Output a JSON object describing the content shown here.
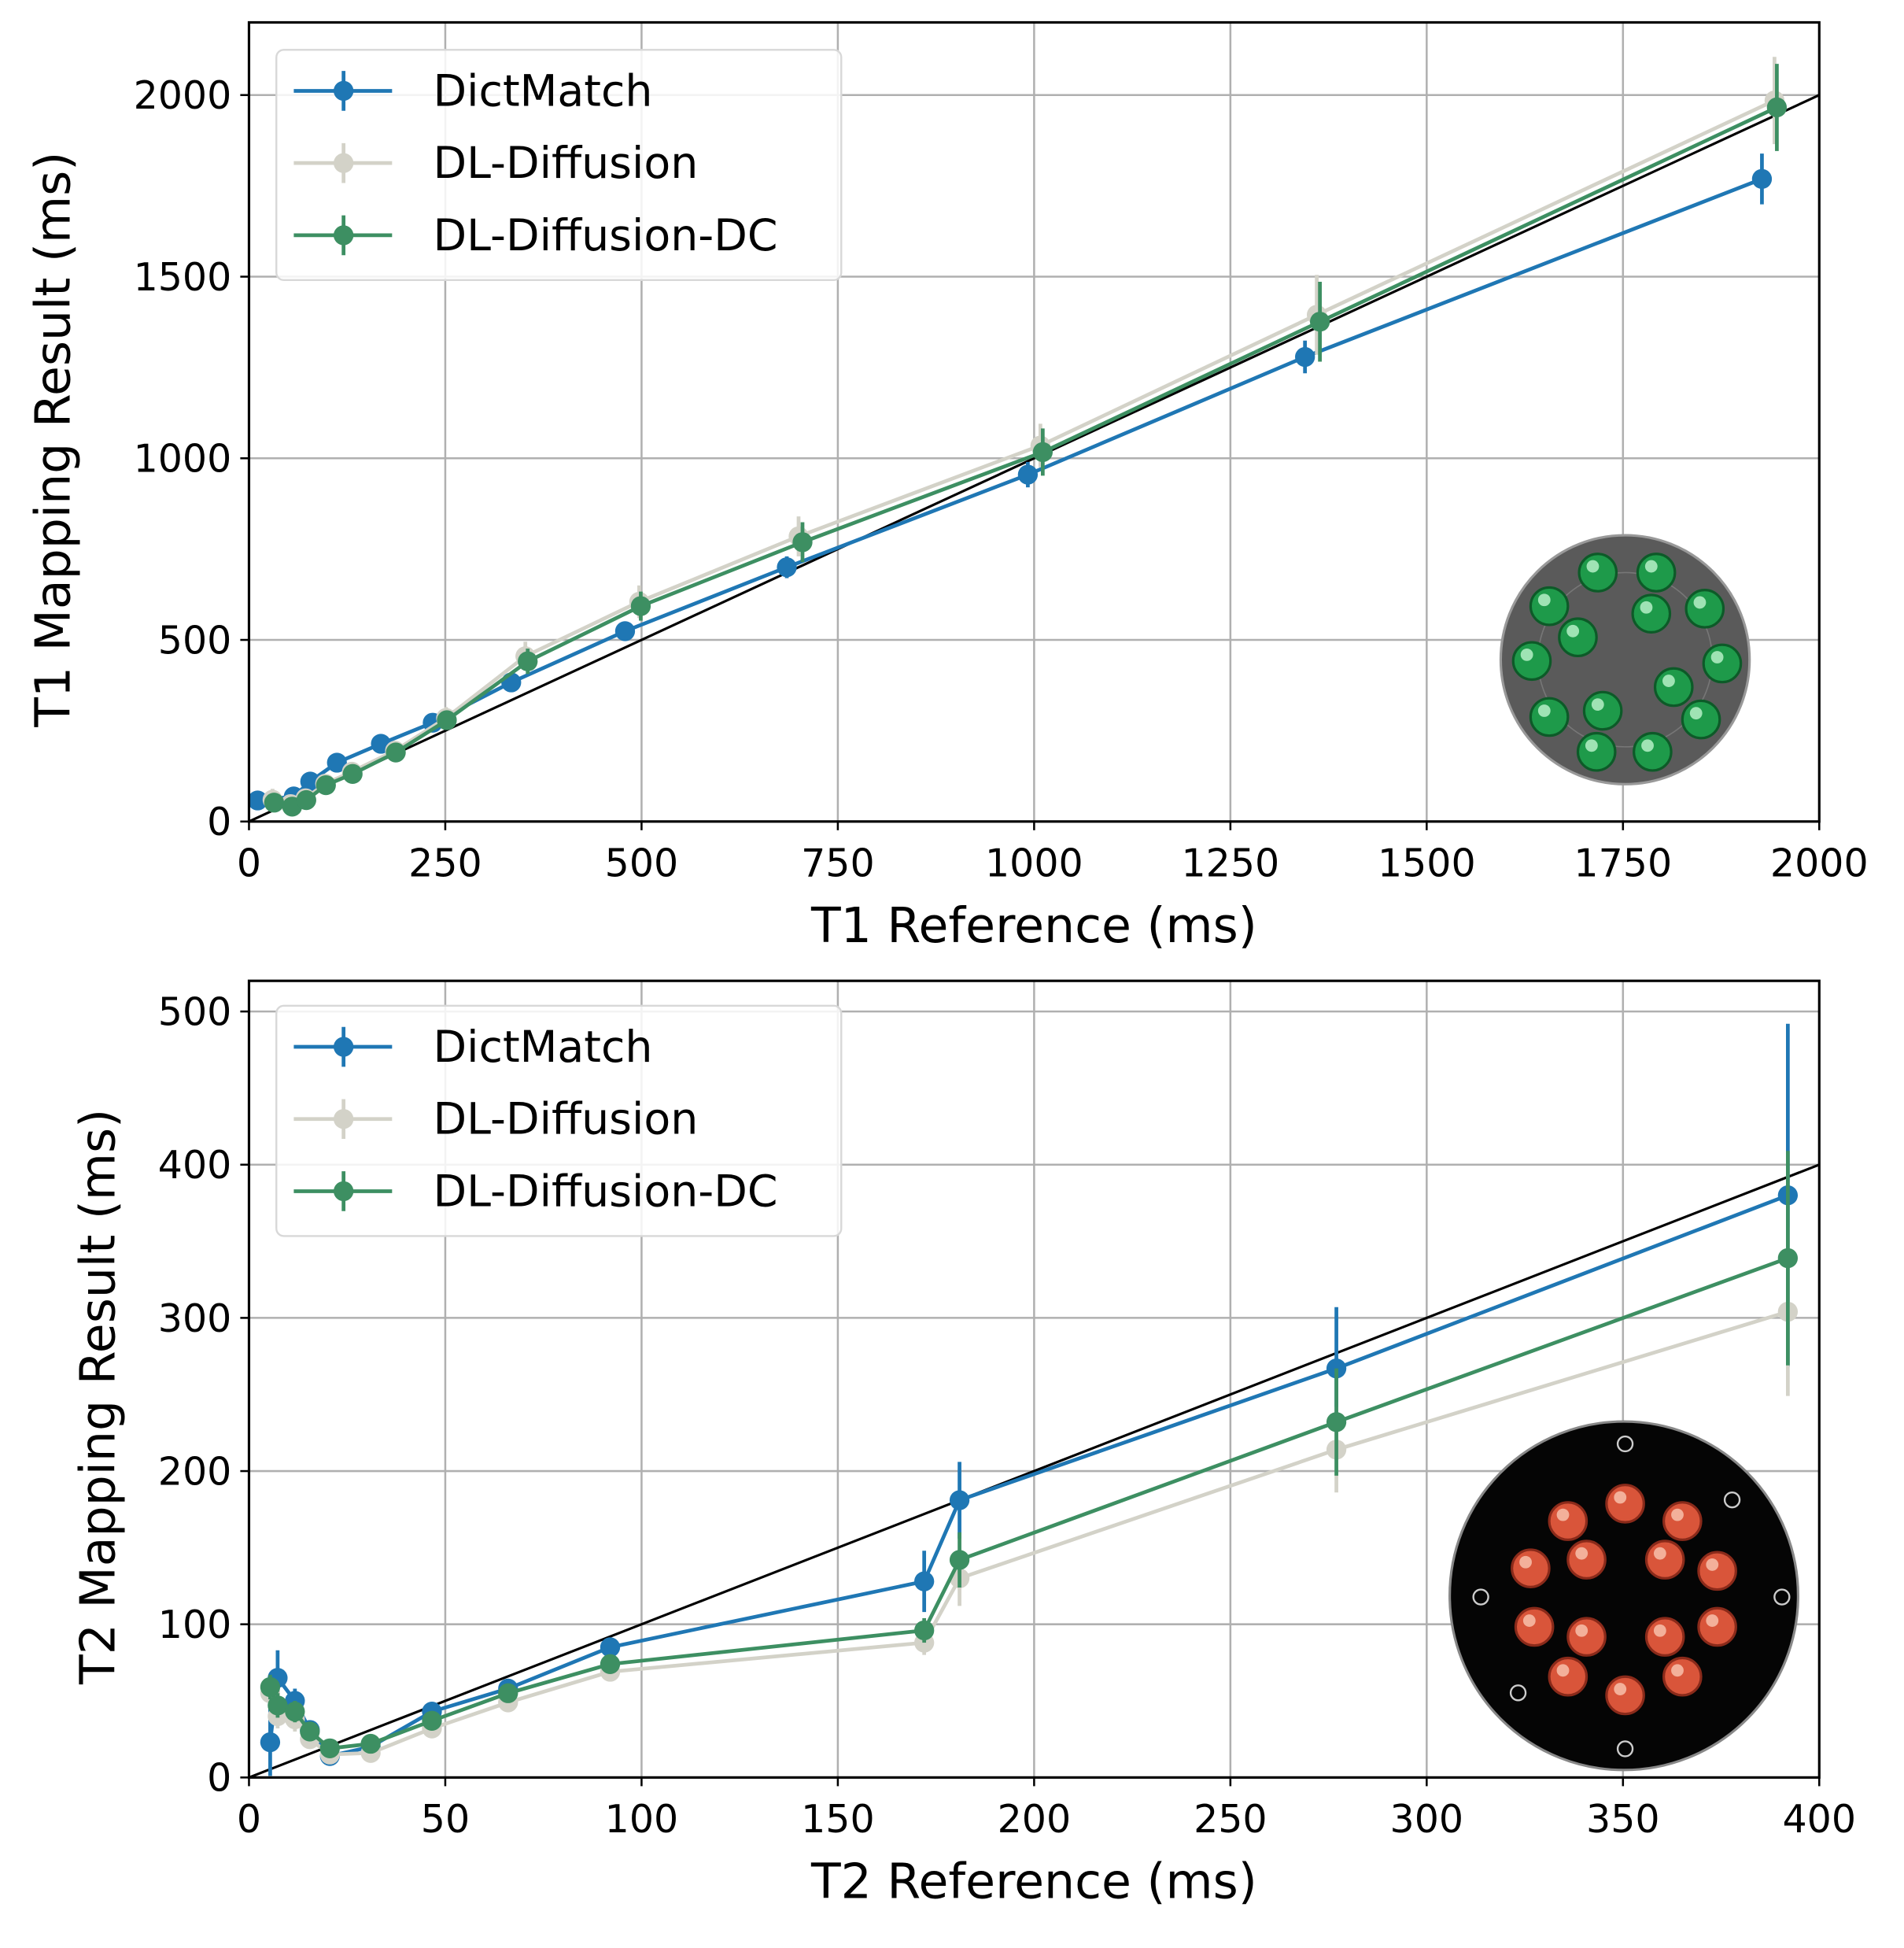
{
  "chart_data": [
    {
      "type": "line",
      "xlabel": "T1 Reference (ms)",
      "ylabel": "T1 Mapping Result (ms)",
      "xlim": [
        0,
        2000
      ],
      "ylim": [
        0,
        2200
      ],
      "xticks": [
        0,
        250,
        500,
        750,
        1000,
        1250,
        1500,
        1750,
        2000
      ],
      "yticks": [
        0,
        500,
        1000,
        1500,
        2000
      ],
      "grid": true,
      "legend": "top-left",
      "identity_line": true,
      "inset": "T1 phantom image (gray disc with green vials)",
      "series": [
        {
          "name": "DictMatch",
          "color": "#1f77b4",
          "x": [
            11,
            57,
            78,
            112,
            168,
            234,
            334,
            479,
            685,
            992,
            1345,
            1927
          ],
          "y": [
            58,
            69,
            110,
            162,
            214,
            272,
            383,
            524,
            700,
            955,
            1279,
            1769
          ],
          "yerr": [
            15,
            15,
            15,
            15,
            15,
            20,
            25,
            25,
            30,
            35,
            45,
            70
          ]
        },
        {
          "name": "DL-Diffusion",
          "color": "#d3d2c8",
          "x": [
            30,
            53,
            72,
            97,
            131,
            186,
            251,
            352,
            497,
            700,
            1008,
            1360,
            1943
          ],
          "y": [
            60,
            48,
            64,
            104,
            137,
            195,
            285,
            455,
            605,
            785,
            1035,
            1395,
            1985
          ],
          "yerr": [
            30,
            25,
            20,
            20,
            20,
            25,
            30,
            40,
            45,
            55,
            60,
            110,
            120
          ]
        },
        {
          "name": "DL-Diffusion-DC",
          "color": "#3d8f62",
          "x": [
            32,
            55,
            73,
            98,
            132,
            187,
            252,
            355,
            499,
            705,
            1011,
            1364,
            1946
          ],
          "y": [
            52,
            41,
            59,
            100,
            131,
            190,
            279,
            441,
            593,
            769,
            1017,
            1376,
            1966
          ],
          "yerr": [
            25,
            20,
            20,
            20,
            20,
            25,
            25,
            35,
            40,
            55,
            65,
            110,
            120
          ]
        }
      ]
    },
    {
      "type": "line",
      "xlabel": "T2 Reference (ms)",
      "ylabel": "T2 Mapping Result (ms)",
      "xlim": [
        0,
        400
      ],
      "ylim": [
        0,
        520
      ],
      "xticks": [
        0,
        50,
        100,
        150,
        200,
        250,
        300,
        350,
        400
      ],
      "yticks": [
        0,
        100,
        200,
        300,
        400,
        500
      ],
      "grid": true,
      "legend": "top-left",
      "identity_line": true,
      "inset": "T2 phantom image (black disc with orange vials)",
      "series": [
        {
          "name": "DictMatch",
          "color": "#1f77b4",
          "x": [
            5.4,
            7.3,
            11.7,
            15.5,
            20.6,
            31,
            46.6,
            66,
            92,
            172,
            181,
            277,
            392
          ],
          "y": [
            23,
            65,
            50,
            31,
            14,
            20,
            43,
            58,
            85,
            128,
            181,
            267,
            380
          ],
          "yerr": [
            22,
            18,
            8,
            6,
            6,
            4,
            4,
            4,
            5,
            20,
            25,
            40,
            112
          ]
        },
        {
          "name": "DL-Diffusion",
          "color": "#d3d2c8",
          "x": [
            5.4,
            7.3,
            11.7,
            15.5,
            20.6,
            31,
            46.6,
            66,
            92,
            172,
            181,
            277,
            392
          ],
          "y": [
            55,
            40,
            38,
            25,
            15,
            16,
            32,
            49,
            69,
            88,
            130,
            214,
            304
          ],
          "yerr": [
            8,
            8,
            8,
            6,
            5,
            4,
            4,
            4,
            4,
            8,
            18,
            28,
            55
          ]
        },
        {
          "name": "DL-Diffusion-DC",
          "color": "#3d8f62",
          "x": [
            5.4,
            7.3,
            11.7,
            15.5,
            20.6,
            31,
            46.6,
            66,
            92,
            172,
            181,
            277,
            392
          ],
          "y": [
            59,
            47,
            43,
            30,
            19,
            22,
            37,
            55,
            74,
            96,
            142,
            232,
            339
          ],
          "yerr": [
            8,
            8,
            7,
            6,
            5,
            4,
            4,
            4,
            4,
            8,
            18,
            35,
            70
          ]
        }
      ]
    }
  ]
}
